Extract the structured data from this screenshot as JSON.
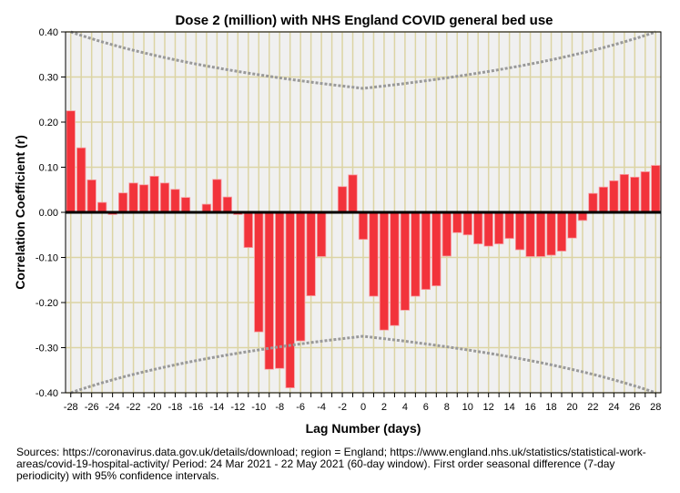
{
  "chart_data": {
    "type": "bar",
    "title": "Dose 2 (million) with NHS England COVID general bed use",
    "xlabel": "Lag Number (days)",
    "ylabel": "Correlation Coefficient (r)",
    "ylim": [
      -0.4,
      0.4
    ],
    "xlim": [
      -28,
      28
    ],
    "yticks": [
      "0.40",
      "0.30",
      "0.20",
      "0.10",
      "0.00",
      "-0.10",
      "-0.20",
      "-0.30",
      "-0.40"
    ],
    "xtick_step": 2,
    "grid": true,
    "bar_color": "#f2333b",
    "ci_color": "#999999",
    "x": [
      -28,
      -27,
      -26,
      -25,
      -24,
      -23,
      -22,
      -21,
      -20,
      -19,
      -18,
      -17,
      -16,
      -15,
      -14,
      -13,
      -12,
      -11,
      -10,
      -9,
      -8,
      -7,
      -6,
      -5,
      -4,
      -3,
      -2,
      -1,
      0,
      1,
      2,
      3,
      4,
      5,
      6,
      7,
      8,
      9,
      10,
      11,
      12,
      13,
      14,
      15,
      16,
      17,
      18,
      19,
      20,
      21,
      22,
      23,
      24,
      25,
      26,
      27,
      28
    ],
    "values": [
      0.225,
      0.143,
      0.072,
      0.022,
      -0.005,
      0.043,
      0.065,
      0.061,
      0.08,
      0.065,
      0.051,
      0.033,
      0.0,
      0.018,
      0.073,
      0.034,
      -0.005,
      -0.078,
      -0.265,
      -0.348,
      -0.346,
      -0.389,
      -0.285,
      -0.185,
      -0.098,
      0.0,
      0.057,
      0.083,
      -0.06,
      -0.186,
      -0.261,
      -0.251,
      -0.217,
      -0.186,
      -0.171,
      -0.163,
      -0.097,
      -0.045,
      -0.05,
      -0.07,
      -0.075,
      -0.07,
      -0.058,
      -0.083,
      -0.098,
      -0.098,
      -0.095,
      -0.086,
      -0.057,
      -0.018,
      0.042,
      0.056,
      0.07,
      0.084,
      0.078,
      0.09,
      0.104
    ],
    "ci_upper_by_abs_lag": [
      0.2747,
      0.2774,
      0.2801,
      0.2828,
      0.2857,
      0.2887,
      0.2917,
      0.2949,
      0.2981,
      0.3015,
      0.305,
      0.3086,
      0.3123,
      0.3162,
      0.3203,
      0.3244,
      0.3288,
      0.3333,
      0.3381,
      0.343,
      0.3482,
      0.3536,
      0.3592,
      0.3651,
      0.3714,
      0.378,
      0.3849,
      0.3922,
      0.4
    ]
  },
  "footnote": "Sources: https://coronavirus.data.gov.uk/details/download; region = England; https://www.england.nhs.uk/statistics/statistical-work-areas/covid-19-hospital-activity/ Period: 24 Mar 2021 - 22 May 2021 (60-day window). First order seasonal difference (7-day periodicity) with 95% confidence intervals."
}
